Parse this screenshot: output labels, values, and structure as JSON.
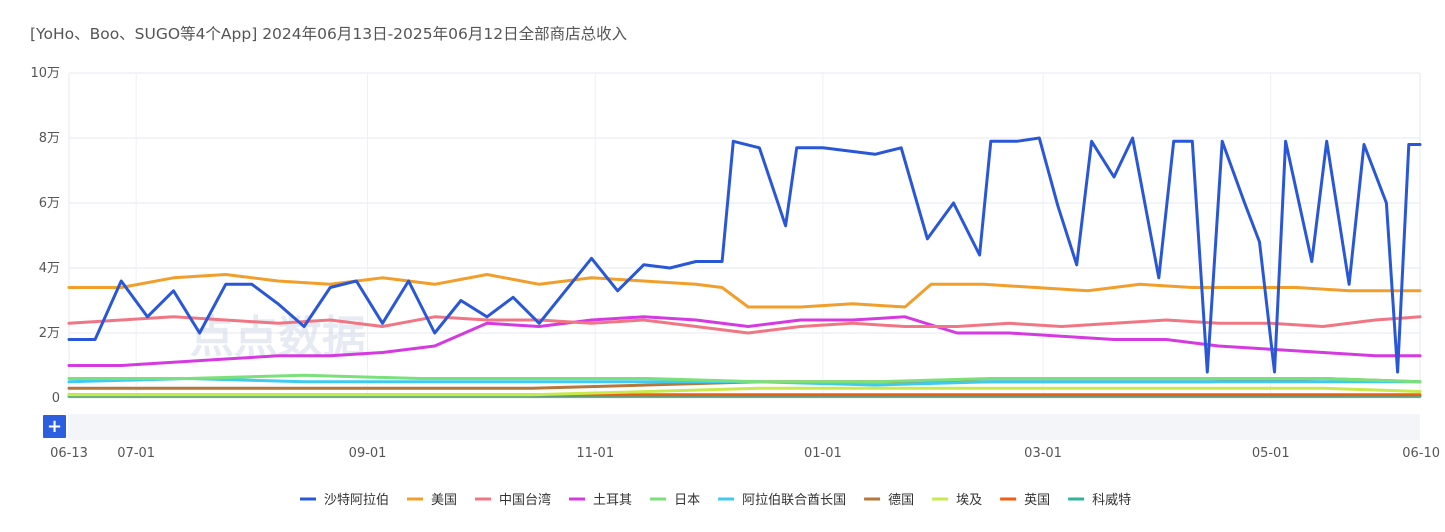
{
  "chart_data": {
    "type": "line",
    "title": "[YoHo、Boo、SUGO等4个App] 2024年06月13日-2025年06月12日全部商店总收入",
    "y_ticks": [
      {
        "value": 0,
        "label": "0"
      },
      {
        "value": 20000,
        "label": "2万"
      },
      {
        "value": 40000,
        "label": "4万"
      },
      {
        "value": 60000,
        "label": "6万"
      },
      {
        "value": 80000,
        "label": "8万"
      },
      {
        "value": 100000,
        "label": "10万"
      }
    ],
    "ylim": [
      0,
      100000
    ],
    "x_range": [
      "2024-06-13",
      "2025-06-10"
    ],
    "x_ticks": [
      {
        "date": "2024-06-13",
        "label": "06-13"
      },
      {
        "date": "2024-07-01",
        "label": "07-01"
      },
      {
        "date": "2024-09-01",
        "label": "09-01"
      },
      {
        "date": "2024-11-01",
        "label": "11-01"
      },
      {
        "date": "2025-01-01",
        "label": "01-01"
      },
      {
        "date": "2025-03-01",
        "label": "03-01"
      },
      {
        "date": "2025-05-01",
        "label": "05-01"
      },
      {
        "date": "2025-06-10",
        "label": "06-10"
      }
    ],
    "grid": true,
    "legend_position": "bottom",
    "watermark": "点点数据",
    "zoom_button_label": "+",
    "series": [
      {
        "name": "沙特阿拉伯",
        "color": "#2a57d8",
        "points": [
          [
            "2024-06-13",
            18000
          ],
          [
            "2024-06-20",
            18000
          ],
          [
            "2024-06-27",
            36000
          ],
          [
            "2024-07-04",
            25000
          ],
          [
            "2024-07-11",
            33000
          ],
          [
            "2024-07-18",
            20000
          ],
          [
            "2024-07-25",
            35000
          ],
          [
            "2024-08-01",
            35000
          ],
          [
            "2024-08-08",
            29000
          ],
          [
            "2024-08-15",
            22000
          ],
          [
            "2024-08-22",
            34000
          ],
          [
            "2024-08-29",
            36000
          ],
          [
            "2024-09-05",
            23000
          ],
          [
            "2024-09-12",
            36000
          ],
          [
            "2024-09-19",
            20000
          ],
          [
            "2024-09-26",
            30000
          ],
          [
            "2024-10-03",
            25000
          ],
          [
            "2024-10-10",
            31000
          ],
          [
            "2024-10-17",
            23000
          ],
          [
            "2024-10-24",
            33000
          ],
          [
            "2024-10-31",
            43000
          ],
          [
            "2024-11-07",
            33000
          ],
          [
            "2024-11-14",
            41000
          ],
          [
            "2024-11-21",
            40000
          ],
          [
            "2024-11-28",
            42000
          ],
          [
            "2024-12-05",
            42000
          ],
          [
            "2024-12-08",
            79000
          ],
          [
            "2024-12-15",
            77000
          ],
          [
            "2024-12-22",
            53000
          ],
          [
            "2024-12-25",
            77000
          ],
          [
            "2025-01-01",
            77000
          ],
          [
            "2025-01-08",
            76000
          ],
          [
            "2025-01-15",
            75000
          ],
          [
            "2025-01-22",
            77000
          ],
          [
            "2025-01-29",
            49000
          ],
          [
            "2025-02-05",
            60000
          ],
          [
            "2025-02-12",
            44000
          ],
          [
            "2025-02-15",
            79000
          ],
          [
            "2025-02-22",
            79000
          ],
          [
            "2025-02-28",
            80000
          ],
          [
            "2025-03-05",
            59000
          ],
          [
            "2025-03-10",
            41000
          ],
          [
            "2025-03-14",
            79000
          ],
          [
            "2025-03-20",
            68000
          ],
          [
            "2025-03-25",
            80000
          ],
          [
            "2025-04-01",
            37000
          ],
          [
            "2025-04-05",
            79000
          ],
          [
            "2025-04-10",
            79000
          ],
          [
            "2025-04-14",
            8000
          ],
          [
            "2025-04-18",
            79000
          ],
          [
            "2025-04-24",
            60000
          ],
          [
            "2025-04-28",
            48000
          ],
          [
            "2025-05-02",
            8000
          ],
          [
            "2025-05-05",
            79000
          ],
          [
            "2025-05-12",
            42000
          ],
          [
            "2025-05-16",
            79000
          ],
          [
            "2025-05-22",
            35000
          ],
          [
            "2025-05-26",
            78000
          ],
          [
            "2025-06-01",
            60000
          ],
          [
            "2025-06-04",
            8000
          ],
          [
            "2025-06-07",
            78000
          ],
          [
            "2025-06-10",
            78000
          ]
        ]
      },
      {
        "name": "美国",
        "color": "#f19e2a",
        "points": [
          [
            "2024-06-13",
            34000
          ],
          [
            "2024-06-27",
            34000
          ],
          [
            "2024-07-11",
            37000
          ],
          [
            "2024-07-25",
            38000
          ],
          [
            "2024-08-08",
            36000
          ],
          [
            "2024-08-22",
            35000
          ],
          [
            "2024-09-05",
            37000
          ],
          [
            "2024-09-19",
            35000
          ],
          [
            "2024-10-03",
            38000
          ],
          [
            "2024-10-17",
            35000
          ],
          [
            "2024-10-31",
            37000
          ],
          [
            "2024-11-14",
            36000
          ],
          [
            "2024-11-28",
            35000
          ],
          [
            "2024-12-05",
            34000
          ],
          [
            "2024-12-12",
            28000
          ],
          [
            "2024-12-26",
            28000
          ],
          [
            "2025-01-09",
            29000
          ],
          [
            "2025-01-23",
            28000
          ],
          [
            "2025-01-30",
            35000
          ],
          [
            "2025-02-13",
            35000
          ],
          [
            "2025-02-27",
            34000
          ],
          [
            "2025-03-13",
            33000
          ],
          [
            "2025-03-27",
            35000
          ],
          [
            "2025-04-10",
            34000
          ],
          [
            "2025-04-24",
            34000
          ],
          [
            "2025-05-08",
            34000
          ],
          [
            "2025-05-22",
            33000
          ],
          [
            "2025-06-10",
            33000
          ]
        ]
      },
      {
        "name": "中国台湾",
        "color": "#f07684",
        "points": [
          [
            "2024-06-13",
            23000
          ],
          [
            "2024-06-27",
            24000
          ],
          [
            "2024-07-11",
            25000
          ],
          [
            "2024-07-25",
            24000
          ],
          [
            "2024-08-08",
            23000
          ],
          [
            "2024-08-22",
            24000
          ],
          [
            "2024-09-05",
            22000
          ],
          [
            "2024-09-19",
            25000
          ],
          [
            "2024-10-03",
            24000
          ],
          [
            "2024-10-17",
            24000
          ],
          [
            "2024-10-31",
            23000
          ],
          [
            "2024-11-14",
            24000
          ],
          [
            "2024-11-28",
            22000
          ],
          [
            "2024-12-12",
            20000
          ],
          [
            "2024-12-26",
            22000
          ],
          [
            "2025-01-09",
            23000
          ],
          [
            "2025-01-23",
            22000
          ],
          [
            "2025-02-06",
            22000
          ],
          [
            "2025-02-20",
            23000
          ],
          [
            "2025-03-06",
            22000
          ],
          [
            "2025-03-20",
            23000
          ],
          [
            "2025-04-03",
            24000
          ],
          [
            "2025-04-17",
            23000
          ],
          [
            "2025-05-01",
            23000
          ],
          [
            "2025-05-15",
            22000
          ],
          [
            "2025-05-29",
            24000
          ],
          [
            "2025-06-10",
            25000
          ]
        ]
      },
      {
        "name": "土耳其",
        "color": "#d43ae0",
        "points": [
          [
            "2024-06-13",
            10000
          ],
          [
            "2024-06-27",
            10000
          ],
          [
            "2024-07-11",
            11000
          ],
          [
            "2024-07-25",
            12000
          ],
          [
            "2024-08-08",
            13000
          ],
          [
            "2024-08-22",
            13000
          ],
          [
            "2024-09-05",
            14000
          ],
          [
            "2024-09-19",
            16000
          ],
          [
            "2024-10-03",
            23000
          ],
          [
            "2024-10-17",
            22000
          ],
          [
            "2024-10-31",
            24000
          ],
          [
            "2024-11-14",
            25000
          ],
          [
            "2024-11-28",
            24000
          ],
          [
            "2024-12-12",
            22000
          ],
          [
            "2024-12-26",
            24000
          ],
          [
            "2025-01-09",
            24000
          ],
          [
            "2025-01-23",
            25000
          ],
          [
            "2025-02-06",
            20000
          ],
          [
            "2025-02-20",
            20000
          ],
          [
            "2025-03-06",
            19000
          ],
          [
            "2025-03-20",
            18000
          ],
          [
            "2025-04-03",
            18000
          ],
          [
            "2025-04-17",
            16000
          ],
          [
            "2025-05-01",
            15000
          ],
          [
            "2025-05-15",
            14000
          ],
          [
            "2025-05-29",
            13000
          ],
          [
            "2025-06-10",
            13000
          ]
        ]
      },
      {
        "name": "日本",
        "color": "#7be07a",
        "points": [
          [
            "2024-06-13",
            6000
          ],
          [
            "2024-07-15",
            6000
          ],
          [
            "2024-08-15",
            7000
          ],
          [
            "2024-09-15",
            6000
          ],
          [
            "2024-10-15",
            6000
          ],
          [
            "2024-11-15",
            6000
          ],
          [
            "2024-12-15",
            5000
          ],
          [
            "2025-01-15",
            5000
          ],
          [
            "2025-02-15",
            6000
          ],
          [
            "2025-03-15",
            6000
          ],
          [
            "2025-04-15",
            6000
          ],
          [
            "2025-05-15",
            6000
          ],
          [
            "2025-06-10",
            5000
          ]
        ]
      },
      {
        "name": "阿拉伯联合酋长国",
        "color": "#3fcaf0",
        "points": [
          [
            "2024-06-13",
            5000
          ],
          [
            "2024-07-15",
            6000
          ],
          [
            "2024-08-15",
            5000
          ],
          [
            "2024-09-15",
            5000
          ],
          [
            "2024-10-15",
            5000
          ],
          [
            "2024-11-15",
            5000
          ],
          [
            "2024-12-15",
            5000
          ],
          [
            "2025-01-15",
            4000
          ],
          [
            "2025-02-15",
            5000
          ],
          [
            "2025-03-15",
            5000
          ],
          [
            "2025-04-15",
            5000
          ],
          [
            "2025-05-15",
            5000
          ],
          [
            "2025-06-10",
            5000
          ]
        ]
      },
      {
        "name": "德国",
        "color": "#b5773a",
        "points": [
          [
            "2024-06-13",
            3000
          ],
          [
            "2024-07-15",
            3000
          ],
          [
            "2024-08-15",
            3000
          ],
          [
            "2024-09-15",
            3000
          ],
          [
            "2024-10-15",
            3000
          ],
          [
            "2024-11-15",
            4000
          ],
          [
            "2024-12-15",
            5000
          ],
          [
            "2025-01-15",
            5000
          ],
          [
            "2025-02-15",
            5000
          ],
          [
            "2025-03-15",
            5000
          ],
          [
            "2025-04-15",
            5000
          ],
          [
            "2025-05-15",
            6000
          ],
          [
            "2025-06-10",
            5000
          ]
        ]
      },
      {
        "name": "埃及",
        "color": "#c8ea4c",
        "points": [
          [
            "2024-06-13",
            1000
          ],
          [
            "2024-07-15",
            1000
          ],
          [
            "2024-08-15",
            1000
          ],
          [
            "2024-09-15",
            1000
          ],
          [
            "2024-10-15",
            1000
          ],
          [
            "2024-11-15",
            2000
          ],
          [
            "2024-12-15",
            3000
          ],
          [
            "2025-01-15",
            3000
          ],
          [
            "2025-02-15",
            3000
          ],
          [
            "2025-03-15",
            3000
          ],
          [
            "2025-04-15",
            3000
          ],
          [
            "2025-05-15",
            3000
          ],
          [
            "2025-06-10",
            2000
          ]
        ]
      },
      {
        "name": "英国",
        "color": "#f25d14",
        "points": [
          [
            "2024-06-13",
            1000
          ],
          [
            "2024-07-15",
            1000
          ],
          [
            "2024-08-15",
            1000
          ],
          [
            "2024-09-15",
            1000
          ],
          [
            "2024-10-15",
            1000
          ],
          [
            "2024-11-15",
            1000
          ],
          [
            "2024-12-15",
            1000
          ],
          [
            "2025-01-15",
            1000
          ],
          [
            "2025-02-15",
            1000
          ],
          [
            "2025-03-15",
            1000
          ],
          [
            "2025-04-15",
            1000
          ],
          [
            "2025-05-15",
            1000
          ],
          [
            "2025-06-10",
            1000
          ]
        ]
      },
      {
        "name": "科威特",
        "color": "#33b39a",
        "points": [
          [
            "2024-06-13",
            500
          ],
          [
            "2024-07-15",
            500
          ],
          [
            "2024-08-15",
            500
          ],
          [
            "2024-09-15",
            500
          ],
          [
            "2024-10-15",
            500
          ],
          [
            "2024-11-15",
            500
          ],
          [
            "2024-12-15",
            500
          ],
          [
            "2025-01-15",
            500
          ],
          [
            "2025-02-15",
            500
          ],
          [
            "2025-03-15",
            500
          ],
          [
            "2025-04-15",
            500
          ],
          [
            "2025-05-15",
            500
          ],
          [
            "2025-06-10",
            500
          ]
        ]
      }
    ]
  }
}
